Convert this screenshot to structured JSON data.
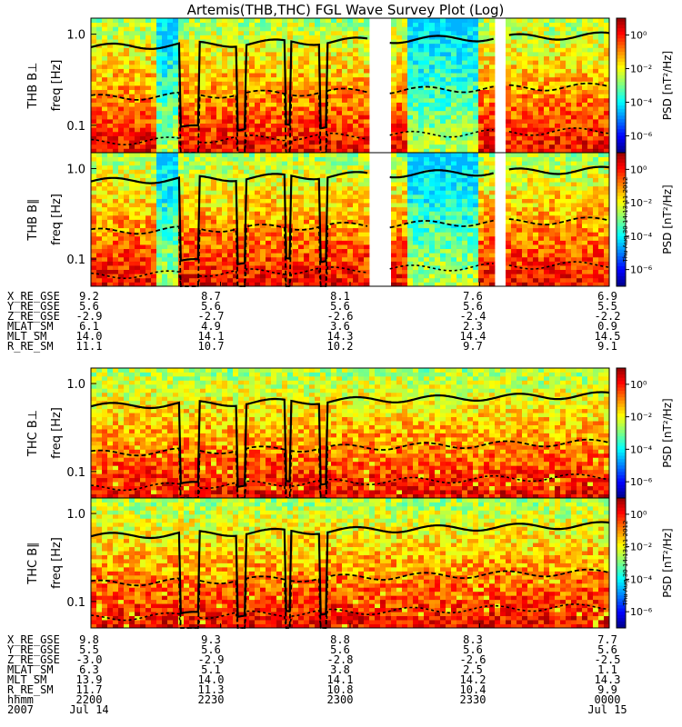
{
  "title": "Artemis(THB,THC) FGL Wave Survey Plot (Log)",
  "timestamp": "Thu Aug 30 14:13:11 2012",
  "chart_data": [
    {
      "type": "heatmap",
      "probe": "THB",
      "panels": [
        {
          "ylabel": "THB B⊥",
          "yunit": "freq [Hz]"
        },
        {
          "ylabel": "THB B∥",
          "yunit": "freq [Hz]"
        }
      ],
      "y_scale": "log",
      "ylim": [
        0.05,
        1.5
      ],
      "y_ticks": [
        "1.0",
        "0.1"
      ],
      "colorbar": {
        "label": "PSD [nT²/Hz]",
        "scale": "log",
        "ticks": [
          "10⁰",
          "10⁻²",
          "10⁻⁴",
          "10⁻⁶"
        ],
        "range": [
          1e-07,
          10
        ]
      },
      "data_gaps": [
        [
          0.535,
          0.575
        ],
        [
          0.78,
          0.805
        ]
      ],
      "ephemeris": {
        "rows": [
          {
            "label": "X_RE_GSE",
            "values": [
              "9.2",
              "8.7",
              "8.1",
              "7.6",
              "6.9"
            ]
          },
          {
            "label": "Y_RE_GSE",
            "values": [
              "5.6",
              "5.6",
              "5.6",
              "5.6",
              "5.5"
            ]
          },
          {
            "label": "Z_RE_GSE",
            "values": [
              "-2.9",
              "-2.7",
              "-2.6",
              "-2.4",
              "-2.2"
            ]
          },
          {
            "label": "MLAT_SM",
            "values": [
              "6.1",
              "4.9",
              "3.6",
              "2.3",
              "0.9"
            ]
          },
          {
            "label": "MLT_SM",
            "values": [
              "14.0",
              "14.1",
              "14.3",
              "14.4",
              "14.5"
            ]
          },
          {
            "label": "R_RE_SM",
            "values": [
              "11.1",
              "10.7",
              "10.2",
              "9.7",
              "9.1"
            ]
          }
        ]
      }
    },
    {
      "type": "heatmap",
      "probe": "THC",
      "panels": [
        {
          "ylabel": "THC B⊥",
          "yunit": "freq [Hz]"
        },
        {
          "ylabel": "THC B∥",
          "yunit": "freq [Hz]"
        }
      ],
      "y_scale": "log",
      "ylim": [
        0.05,
        1.5
      ],
      "y_ticks": [
        "1.0",
        "0.1"
      ],
      "colorbar": {
        "label": "PSD [nT²/Hz]",
        "scale": "log",
        "ticks": [
          "10⁰",
          "10⁻²",
          "10⁻⁴",
          "10⁻⁶"
        ],
        "range": [
          1e-07,
          10
        ]
      },
      "ephemeris": {
        "rows": [
          {
            "label": "X_RE_GSE",
            "values": [
              "9.8",
              "9.3",
              "8.8",
              "8.3",
              "7.7"
            ]
          },
          {
            "label": "Y_RE_GSE",
            "values": [
              "5.5",
              "5.6",
              "5.6",
              "5.6",
              "5.6"
            ]
          },
          {
            "label": "Z_RE_GSE",
            "values": [
              "-3.0",
              "-2.9",
              "-2.8",
              "-2.6",
              "-2.5"
            ]
          },
          {
            "label": "MLAT_SM",
            "values": [
              "6.3",
              "5.1",
              "3.8",
              "2.5",
              "1.1"
            ]
          },
          {
            "label": "MLT_SM",
            "values": [
              "13.9",
              "14.0",
              "14.1",
              "14.2",
              "14.3"
            ]
          },
          {
            "label": "R_RE_SM",
            "values": [
              "11.7",
              "11.3",
              "10.8",
              "10.4",
              "9.9"
            ]
          },
          {
            "label": "hhmm",
            "values": [
              "2200",
              "2230",
              "2300",
              "2330",
              "0000"
            ]
          },
          {
            "label": "2007",
            "values": [
              "Jul 14",
              "",
              "",
              "",
              "Jul 15"
            ]
          }
        ]
      }
    }
  ]
}
